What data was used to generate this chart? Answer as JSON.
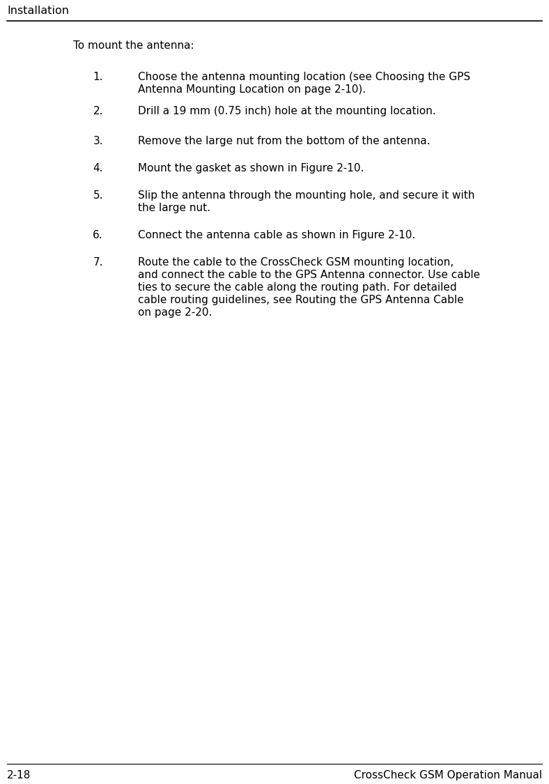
{
  "bg_color": "#ffffff",
  "text_color": "#000000",
  "header_text": "Installation",
  "header_font_size": 11.5,
  "intro_text": "To mount the antenna:",
  "font_size": 11.0,
  "footer_left": "2-18",
  "footer_right": "CrossCheck GSM Operation Manual",
  "footer_font_size": 11.0,
  "items": [
    {
      "num": "1.",
      "text": "Choose the antenna mounting location (see Choosing the GPS\nAntenna Mounting Location on page 2-10)."
    },
    {
      "num": "2.",
      "text": "Drill a 19 mm (0.75 inch) hole at the mounting location."
    },
    {
      "num": "3.",
      "text": "Remove the large nut from the bottom of the antenna."
    },
    {
      "num": "4.",
      "text": "Mount the gasket as shown in Figure 2-10."
    },
    {
      "num": "5.",
      "text": "Slip the antenna through the mounting hole, and secure it with\nthe large nut."
    },
    {
      "num": "6.",
      "text": "Connect the antenna cable as shown in Figure 2-10."
    },
    {
      "num": "7.",
      "text": "Route the cable to the CrossCheck GSM mounting location,\nand connect the cable to the GPS Antenna connector. Use cable\nties to secure the cable along the routing path. For detailed\ncable routing guidelines, see Routing the GPS Antenna Cable\non page 2-20."
    }
  ]
}
